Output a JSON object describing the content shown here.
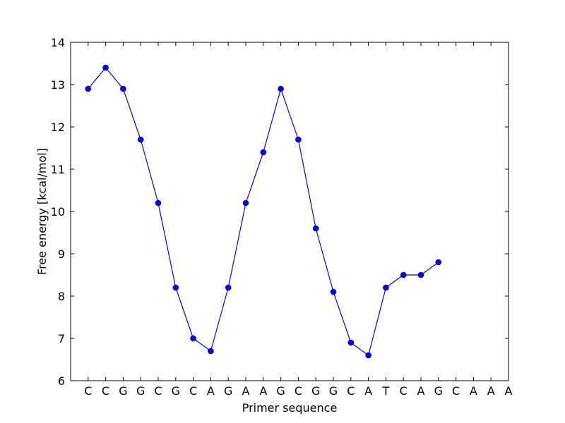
{
  "chart_data": {
    "type": "line",
    "xlabel": "Primer sequence",
    "ylabel": "Free energy [kcal/mol]",
    "categories": [
      "C",
      "C",
      "G",
      "G",
      "C",
      "G",
      "C",
      "A",
      "G",
      "A",
      "A",
      "G",
      "C",
      "G",
      "G",
      "C",
      "A",
      "T",
      "C",
      "A",
      "G",
      "C",
      "A",
      "A",
      "A"
    ],
    "series": [
      {
        "name": "Free energy",
        "color": "#0000ff",
        "values": [
          12.9,
          13.4,
          12.9,
          11.7,
          10.2,
          8.2,
          7.0,
          6.7,
          8.2,
          10.2,
          11.4,
          12.9,
          11.7,
          9.6,
          8.1,
          6.9,
          6.6,
          8.2,
          8.5,
          8.5,
          8.8,
          null,
          null,
          null,
          null
        ]
      }
    ],
    "ylim": [
      6,
      14
    ],
    "yticks": [
      6,
      7,
      8,
      9,
      10,
      11,
      12,
      13,
      14
    ],
    "grid": false
  }
}
